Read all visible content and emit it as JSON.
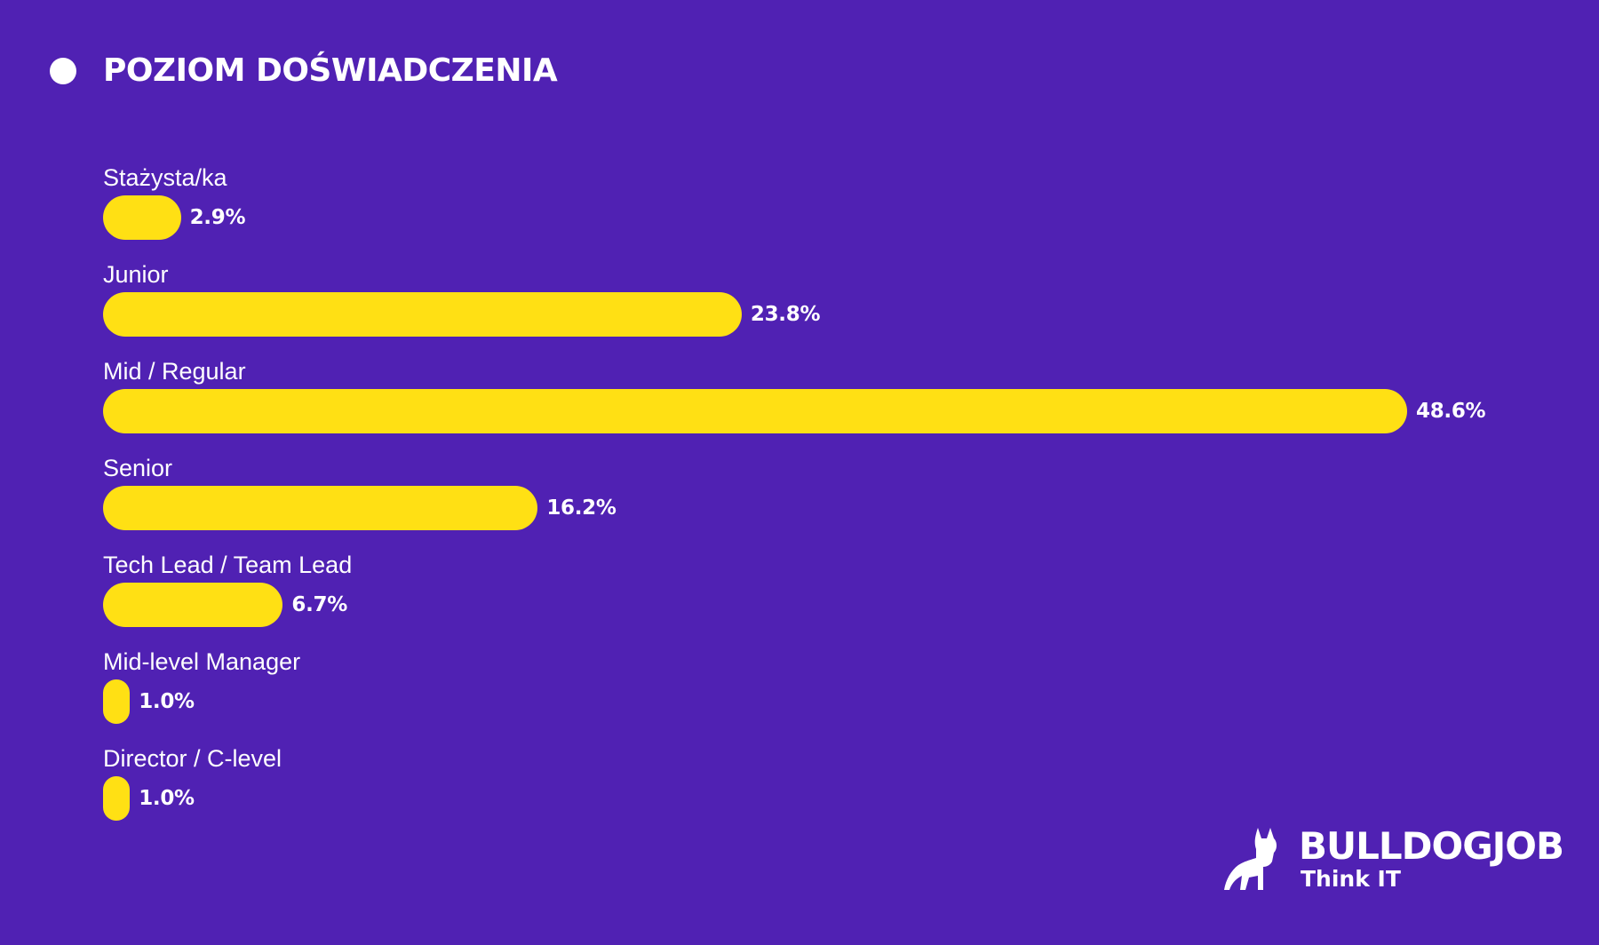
{
  "header": {
    "title": "POZIOM DOŚWIADCZENIA"
  },
  "colors": {
    "background": "#5021b3",
    "bar": "#ffe014",
    "text": "#ffffff"
  },
  "chart_data": {
    "type": "bar",
    "orientation": "horizontal",
    "title": "POZIOM DOŚWIADCZENIA",
    "categories": [
      "Stażysta/ka",
      "Junior",
      "Mid / Regular",
      "Senior",
      "Tech Lead / Team Lead",
      "Mid-level Manager",
      "Director / C-level"
    ],
    "values": [
      2.9,
      23.8,
      48.6,
      16.2,
      6.7,
      1.0,
      1.0
    ],
    "value_labels": [
      "2.9%",
      "23.8%",
      "48.6%",
      "16.2%",
      "6.7%",
      "1.0%",
      "1.0%"
    ],
    "unit": "%",
    "xlim": [
      0,
      48.6
    ],
    "grid": false,
    "legend": "none"
  },
  "logo": {
    "name": "BULLDOGJOB",
    "tagline": "Think IT",
    "icon": "bulldog-icon"
  }
}
